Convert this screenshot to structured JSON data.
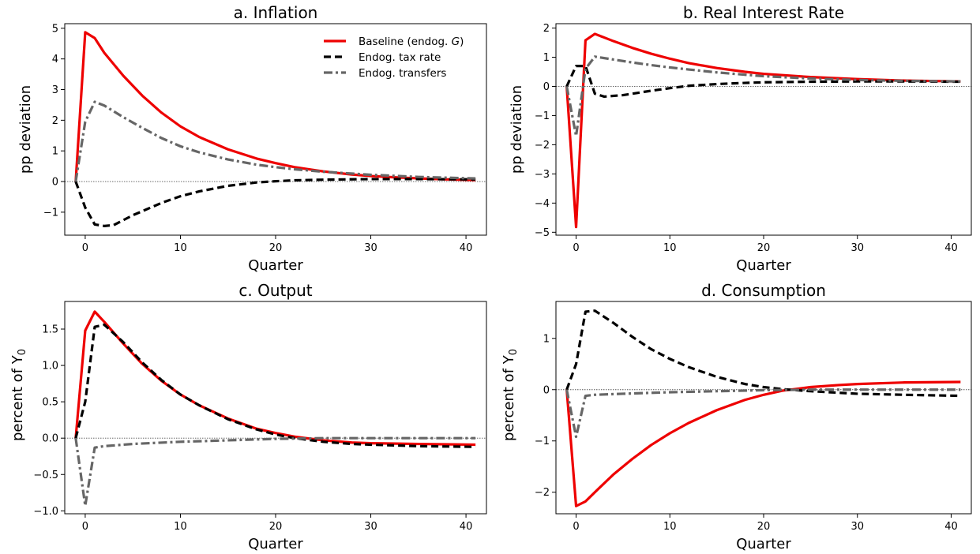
{
  "chart_data": [
    {
      "type": "line",
      "title": "a. Inflation",
      "xlabel": "Quarter",
      "ylabel": "pp deviation",
      "ylabel_sub": "",
      "xlim": [
        -2.15,
        42.15
      ],
      "ylim": [
        -1.75,
        5.15
      ],
      "xticks": [
        0,
        10,
        20,
        30,
        40
      ],
      "xtick_labels": [
        "0",
        "10",
        "20",
        "30",
        "40"
      ],
      "yticks": [
        -1,
        0,
        1,
        2,
        3,
        4,
        5
      ],
      "ytick_labels": [
        "−1",
        "0",
        "1",
        "2",
        "3",
        "4",
        "5"
      ],
      "zero_line": true,
      "legend": {
        "placement": "top-right",
        "show": true
      },
      "series": [
        {
          "name": "Baseline (endog. G)",
          "color": "#ee0000",
          "style": "solid",
          "x": [
            -1,
            0,
            1,
            2,
            4,
            6,
            8,
            10,
            12,
            15,
            18,
            20,
            22,
            25,
            28,
            30,
            33,
            36,
            38,
            41
          ],
          "y": [
            0,
            4.87,
            4.68,
            4.2,
            3.45,
            2.8,
            2.25,
            1.8,
            1.45,
            1.05,
            0.75,
            0.6,
            0.47,
            0.33,
            0.23,
            0.18,
            0.13,
            0.09,
            0.07,
            0.05
          ]
        },
        {
          "name": "Endog. tax rate",
          "color": "#000000",
          "style": "dashed",
          "x": [
            -1,
            0,
            1,
            2,
            3,
            5,
            8,
            10,
            12,
            15,
            18,
            20,
            22,
            25,
            30,
            35,
            41
          ],
          "y": [
            0,
            -0.85,
            -1.4,
            -1.45,
            -1.42,
            -1.1,
            -0.7,
            -0.48,
            -0.32,
            -0.14,
            -0.03,
            0.01,
            0.04,
            0.06,
            0.08,
            0.08,
            0.07
          ]
        },
        {
          "name": "Endog. transfers",
          "color": "#666666",
          "style": "dashdot",
          "x": [
            -1,
            0,
            1,
            2,
            4,
            6,
            8,
            10,
            12,
            15,
            18,
            20,
            22,
            25,
            30,
            35,
            41
          ],
          "y": [
            0,
            1.95,
            2.6,
            2.48,
            2.1,
            1.75,
            1.42,
            1.15,
            0.95,
            0.72,
            0.55,
            0.47,
            0.4,
            0.32,
            0.22,
            0.15,
            0.1
          ]
        }
      ]
    },
    {
      "type": "line",
      "title": "b. Real Interest Rate",
      "xlabel": "Quarter",
      "ylabel": "pp deviation",
      "ylabel_sub": "",
      "xlim": [
        -2.15,
        42.15
      ],
      "ylim": [
        -5.1,
        2.15
      ],
      "xticks": [
        0,
        10,
        20,
        30,
        40
      ],
      "xtick_labels": [
        "0",
        "10",
        "20",
        "30",
        "40"
      ],
      "yticks": [
        -5,
        -4,
        -3,
        -2,
        -1,
        0,
        1,
        2
      ],
      "ytick_labels": [
        "−5",
        "−4",
        "−3",
        "−2",
        "−1",
        "0",
        "1",
        "2"
      ],
      "zero_line": true,
      "legend": {
        "placement": "none",
        "show": false
      },
      "series": [
        {
          "name": "Baseline (endog. G)",
          "color": "#ee0000",
          "style": "solid",
          "x": [
            -1,
            0,
            1,
            2,
            4,
            6,
            8,
            10,
            12,
            15,
            18,
            20,
            25,
            30,
            35,
            41
          ],
          "y": [
            0,
            -4.82,
            1.58,
            1.8,
            1.55,
            1.32,
            1.12,
            0.95,
            0.8,
            0.63,
            0.5,
            0.43,
            0.32,
            0.25,
            0.2,
            0.17
          ]
        },
        {
          "name": "Endog. tax rate",
          "color": "#000000",
          "style": "dashed",
          "x": [
            -1,
            0,
            1,
            2,
            3,
            5,
            8,
            10,
            12,
            15,
            18,
            20,
            25,
            30,
            35,
            41
          ],
          "y": [
            0,
            0.7,
            0.7,
            -0.25,
            -0.35,
            -0.3,
            -0.15,
            -0.06,
            0.02,
            0.08,
            0.12,
            0.14,
            0.16,
            0.17,
            0.17,
            0.16
          ]
        },
        {
          "name": "Endog. transfers",
          "color": "#666666",
          "style": "dashdot",
          "x": [
            -1,
            0,
            1,
            2,
            4,
            6,
            8,
            10,
            12,
            15,
            18,
            20,
            25,
            30,
            35,
            41
          ],
          "y": [
            0,
            -1.7,
            0.6,
            1.02,
            0.92,
            0.82,
            0.73,
            0.65,
            0.58,
            0.48,
            0.4,
            0.35,
            0.27,
            0.22,
            0.19,
            0.17
          ]
        }
      ]
    },
    {
      "type": "line",
      "title": "c. Output",
      "xlabel": "Quarter",
      "ylabel": "percent of Y",
      "ylabel_sub": "0",
      "xlim": [
        -2.15,
        42.15
      ],
      "ylim": [
        -1.04,
        1.88
      ],
      "xticks": [
        0,
        10,
        20,
        30,
        40
      ],
      "xtick_labels": [
        "0",
        "10",
        "20",
        "30",
        "40"
      ],
      "yticks": [
        -1.0,
        -0.5,
        0.0,
        0.5,
        1.0,
        1.5
      ],
      "ytick_labels": [
        "−1.0",
        "−0.5",
        "0.0",
        "0.5",
        "1.0",
        "1.5"
      ],
      "zero_line": true,
      "legend": {
        "placement": "none",
        "show": false
      },
      "series": [
        {
          "name": "Baseline (endog. G)",
          "color": "#ee0000",
          "style": "solid",
          "x": [
            -1,
            0,
            1,
            2,
            4,
            6,
            8,
            10,
            12,
            15,
            18,
            20,
            22,
            25,
            28,
            30,
            35,
            41
          ],
          "y": [
            0,
            1.48,
            1.74,
            1.6,
            1.3,
            1.02,
            0.79,
            0.6,
            0.45,
            0.27,
            0.13,
            0.07,
            0.02,
            -0.03,
            -0.06,
            -0.07,
            -0.08,
            -0.09
          ]
        },
        {
          "name": "Endog. tax rate",
          "color": "#000000",
          "style": "dashed",
          "x": [
            -1,
            0,
            1,
            2,
            4,
            6,
            8,
            10,
            12,
            15,
            18,
            20,
            22,
            25,
            28,
            30,
            35,
            41
          ],
          "y": [
            0,
            0.5,
            1.53,
            1.56,
            1.32,
            1.04,
            0.8,
            0.6,
            0.45,
            0.26,
            0.12,
            0.05,
            0.0,
            -0.05,
            -0.08,
            -0.09,
            -0.11,
            -0.12
          ]
        },
        {
          "name": "Endog. transfers",
          "color": "#666666",
          "style": "dashdot",
          "x": [
            -1,
            0,
            1,
            2,
            5,
            10,
            15,
            20,
            25,
            30,
            41
          ],
          "y": [
            0,
            -0.93,
            -0.13,
            -0.11,
            -0.08,
            -0.05,
            -0.03,
            -0.01,
            0.0,
            0.0,
            0.0
          ]
        }
      ]
    },
    {
      "type": "line",
      "title": "d. Consumption",
      "xlabel": "Quarter",
      "ylabel": "percent of Y",
      "ylabel_sub": "0",
      "xlim": [
        -2.15,
        42.15
      ],
      "ylim": [
        -2.42,
        1.72
      ],
      "xticks": [
        0,
        10,
        20,
        30,
        40
      ],
      "xtick_labels": [
        "0",
        "10",
        "20",
        "30",
        "40"
      ],
      "yticks": [
        -2,
        -1,
        0,
        1
      ],
      "ytick_labels": [
        "−2",
        "−1",
        "0",
        "1"
      ],
      "zero_line": true,
      "legend": {
        "placement": "none",
        "show": false
      },
      "series": [
        {
          "name": "Baseline (endog. G)",
          "color": "#ee0000",
          "style": "solid",
          "x": [
            -1,
            0,
            1,
            2,
            4,
            6,
            8,
            10,
            12,
            15,
            18,
            20,
            22,
            25,
            28,
            30,
            35,
            41
          ],
          "y": [
            0,
            -2.27,
            -2.18,
            -2.0,
            -1.65,
            -1.35,
            -1.08,
            -0.85,
            -0.65,
            -0.4,
            -0.2,
            -0.1,
            -0.02,
            0.05,
            0.09,
            0.11,
            0.14,
            0.15
          ]
        },
        {
          "name": "Endog. tax rate",
          "color": "#000000",
          "style": "dashed",
          "x": [
            -1,
            0,
            1,
            2,
            4,
            6,
            8,
            10,
            12,
            15,
            18,
            20,
            22,
            25,
            28,
            30,
            35,
            41
          ],
          "y": [
            0,
            0.5,
            1.52,
            1.54,
            1.3,
            1.03,
            0.79,
            0.6,
            0.44,
            0.25,
            0.11,
            0.05,
            0.01,
            -0.03,
            -0.06,
            -0.08,
            -0.1,
            -0.12
          ]
        },
        {
          "name": "Endog. transfers",
          "color": "#666666",
          "style": "dashdot",
          "x": [
            -1,
            0,
            1,
            2,
            5,
            10,
            15,
            20,
            25,
            30,
            41
          ],
          "y": [
            0,
            -0.92,
            -0.12,
            -0.1,
            -0.08,
            -0.05,
            -0.03,
            -0.01,
            0.0,
            0.0,
            0.0
          ]
        }
      ]
    }
  ]
}
